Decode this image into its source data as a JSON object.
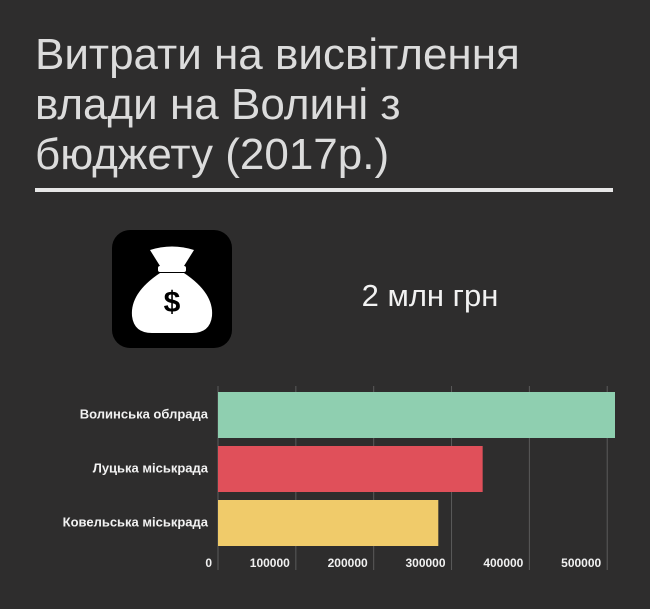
{
  "title": "Витрати на висвітлення влади на Волині з бюджету (2017р.)",
  "total": "2 млн грн",
  "icon_label": "$",
  "chart_data": {
    "type": "bar",
    "orientation": "horizontal",
    "categories": [
      "Волинська облрада",
      "Луцька міськрада",
      "Ковельська міськрада"
    ],
    "values": [
      510000,
      340000,
      283000
    ],
    "colors": [
      "#8fcfb0",
      "#e0505a",
      "#f0cb6a"
    ],
    "xlim": [
      0,
      510000
    ],
    "xticks": [
      0,
      100000,
      200000,
      300000,
      400000,
      500000
    ],
    "grid": true
  }
}
